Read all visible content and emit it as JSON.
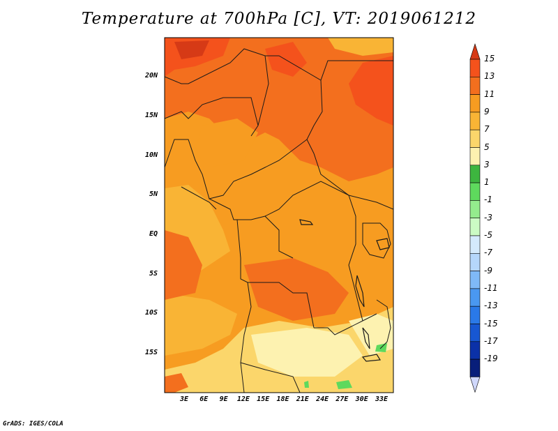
{
  "title": "Temperature at 700hPa [C], VT: 2019061212",
  "footer": "GrADS: IGES/COLA",
  "map": {
    "lat_labels": [
      "20N",
      "15N",
      "10N",
      "5N",
      "EQ",
      "5S",
      "10S",
      "15S"
    ],
    "lon_labels": [
      "3E",
      "6E",
      "9E",
      "12E",
      "15E",
      "18E",
      "21E",
      "24E",
      "27E",
      "30E",
      "33E"
    ]
  },
  "colorbar": {
    "labels": [
      "15",
      "13",
      "11",
      "9",
      "7",
      "5",
      "3",
      "1",
      "-1",
      "-3",
      "-5",
      "-7",
      "-9",
      "-11",
      "-13",
      "-15",
      "-17",
      "-19"
    ],
    "colors": [
      "#d63a16",
      "#f4521c",
      "#f36f1e",
      "#f79c21",
      "#f9b435",
      "#fbd66b",
      "#fdf2b0",
      "#3db53f",
      "#5ed95d",
      "#94ec8d",
      "#cbfbc4",
      "#d4eafc",
      "#b5d7fb",
      "#7fb9f7",
      "#4a98f1",
      "#2a79e8",
      "#1757d2",
      "#0b31a8",
      "#081e7a",
      "#d0d8fc"
    ]
  }
}
